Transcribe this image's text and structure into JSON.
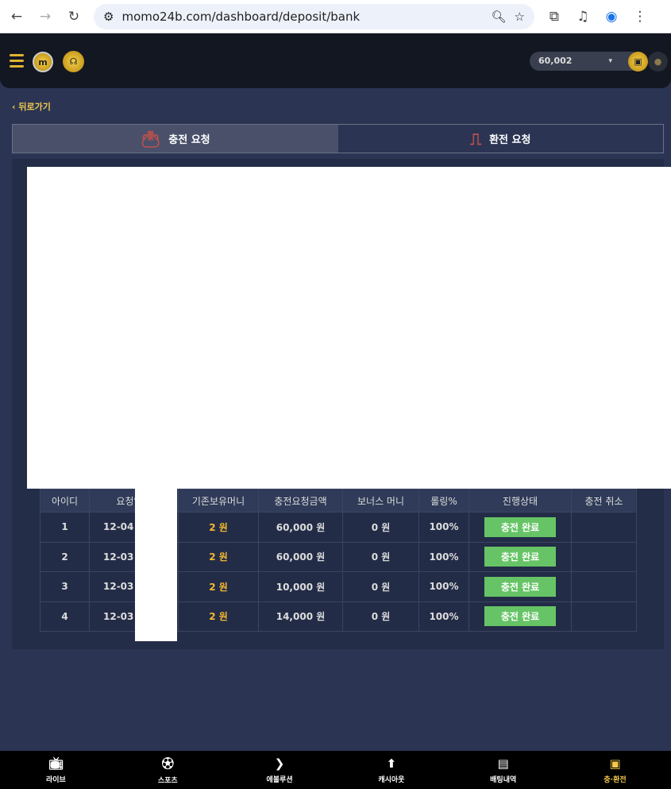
{
  "browser": {
    "url": "momo24b.com/dashboard/deposit/bank"
  },
  "header": {
    "balance": "60,002",
    "logo_letter": "m"
  },
  "back_label": "뒤로가기",
  "tabs": [
    {
      "label": "충전 요청",
      "active": true
    },
    {
      "label": "환전 요청",
      "active": false
    }
  ],
  "table": {
    "headers": [
      "아이디",
      "요청일시",
      "기존보유머니",
      "충전요청금액",
      "보너스 머니",
      "롤링%",
      "진행상태",
      "충전 취소"
    ],
    "rows": [
      {
        "id": "1",
        "date": "12-04",
        "prev": "2 원",
        "amount": "60,000 원",
        "bonus": "0 원",
        "rolling": "100%",
        "status": "충전 완료"
      },
      {
        "id": "2",
        "date": "12-03",
        "prev": "2 원",
        "amount": "60,000 원",
        "bonus": "0 원",
        "rolling": "100%",
        "status": "충전 완료"
      },
      {
        "id": "3",
        "date": "12-03",
        "prev": "2 원",
        "amount": "10,000 원",
        "bonus": "0 원",
        "rolling": "100%",
        "status": "충전 완료"
      },
      {
        "id": "4",
        "date": "12-03",
        "prev": "2 원",
        "amount": "14,000 원",
        "bonus": "0 원",
        "rolling": "100%",
        "status": "충전 완료"
      }
    ]
  },
  "bottom_nav": [
    {
      "label": "라이브",
      "icon": "live-tv-icon"
    },
    {
      "label": "스포츠",
      "icon": "soccer-ball-icon"
    },
    {
      "label": "에볼루션",
      "icon": "evolution-icon"
    },
    {
      "label": "캐시아웃",
      "icon": "cashout-icon"
    },
    {
      "label": "배팅내역",
      "icon": "document-icon"
    },
    {
      "label": "충·환전",
      "icon": "wallet-exchange-icon",
      "active": true
    }
  ],
  "colors": {
    "accent": "#f2c94c",
    "status_green": "#66c466",
    "background": "#2b3553"
  }
}
